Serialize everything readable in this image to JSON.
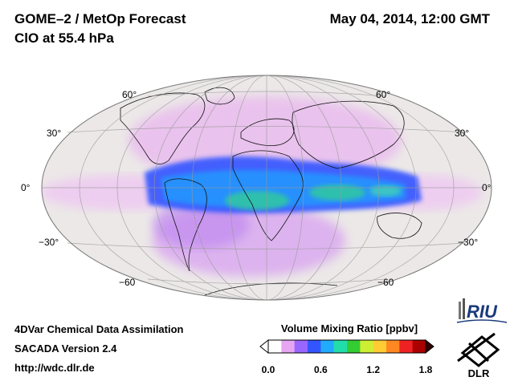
{
  "header": {
    "title": "GOME–2 / MetOp Forecast",
    "subtitle": "ClO at 55.4 hPa",
    "datetime": "May 04, 2014, 12:00 GMT"
  },
  "map": {
    "projection": "Hammer-Aitoff (global)",
    "latitude_labels_left": [
      "60°",
      "30°",
      "0°",
      "−30°",
      "−60"
    ],
    "latitude_labels_right": [
      "60°",
      "30°",
      "0°",
      "−30°",
      "−60"
    ],
    "background_color": "#ece8e8",
    "field_colors": {
      "low": "#f0c8f0",
      "mid": "#3366ff",
      "high": "#33cc66"
    }
  },
  "footer": {
    "line1": "4DVar Chemical Data Assimilation",
    "line2": "SACADA Version 2.4",
    "line3": "http://wdc.dlr.de"
  },
  "colorbar": {
    "title": "Volume Mixing Ratio [ppbv]",
    "ticks": [
      "0.0",
      "0.6",
      "1.2",
      "1.8"
    ],
    "tick_values": [
      0.0,
      0.6,
      1.2,
      1.8
    ],
    "range": [
      0.0,
      1.8
    ],
    "colors": [
      "#ffffff",
      "#e6a6f2",
      "#9966ff",
      "#3355ff",
      "#22aaff",
      "#22ddaa",
      "#33cc33",
      "#ccee33",
      "#ffcc33",
      "#ff8822",
      "#ee2222",
      "#aa0000"
    ]
  },
  "logos": {
    "riu": "RIU",
    "dlr": "DLR"
  }
}
